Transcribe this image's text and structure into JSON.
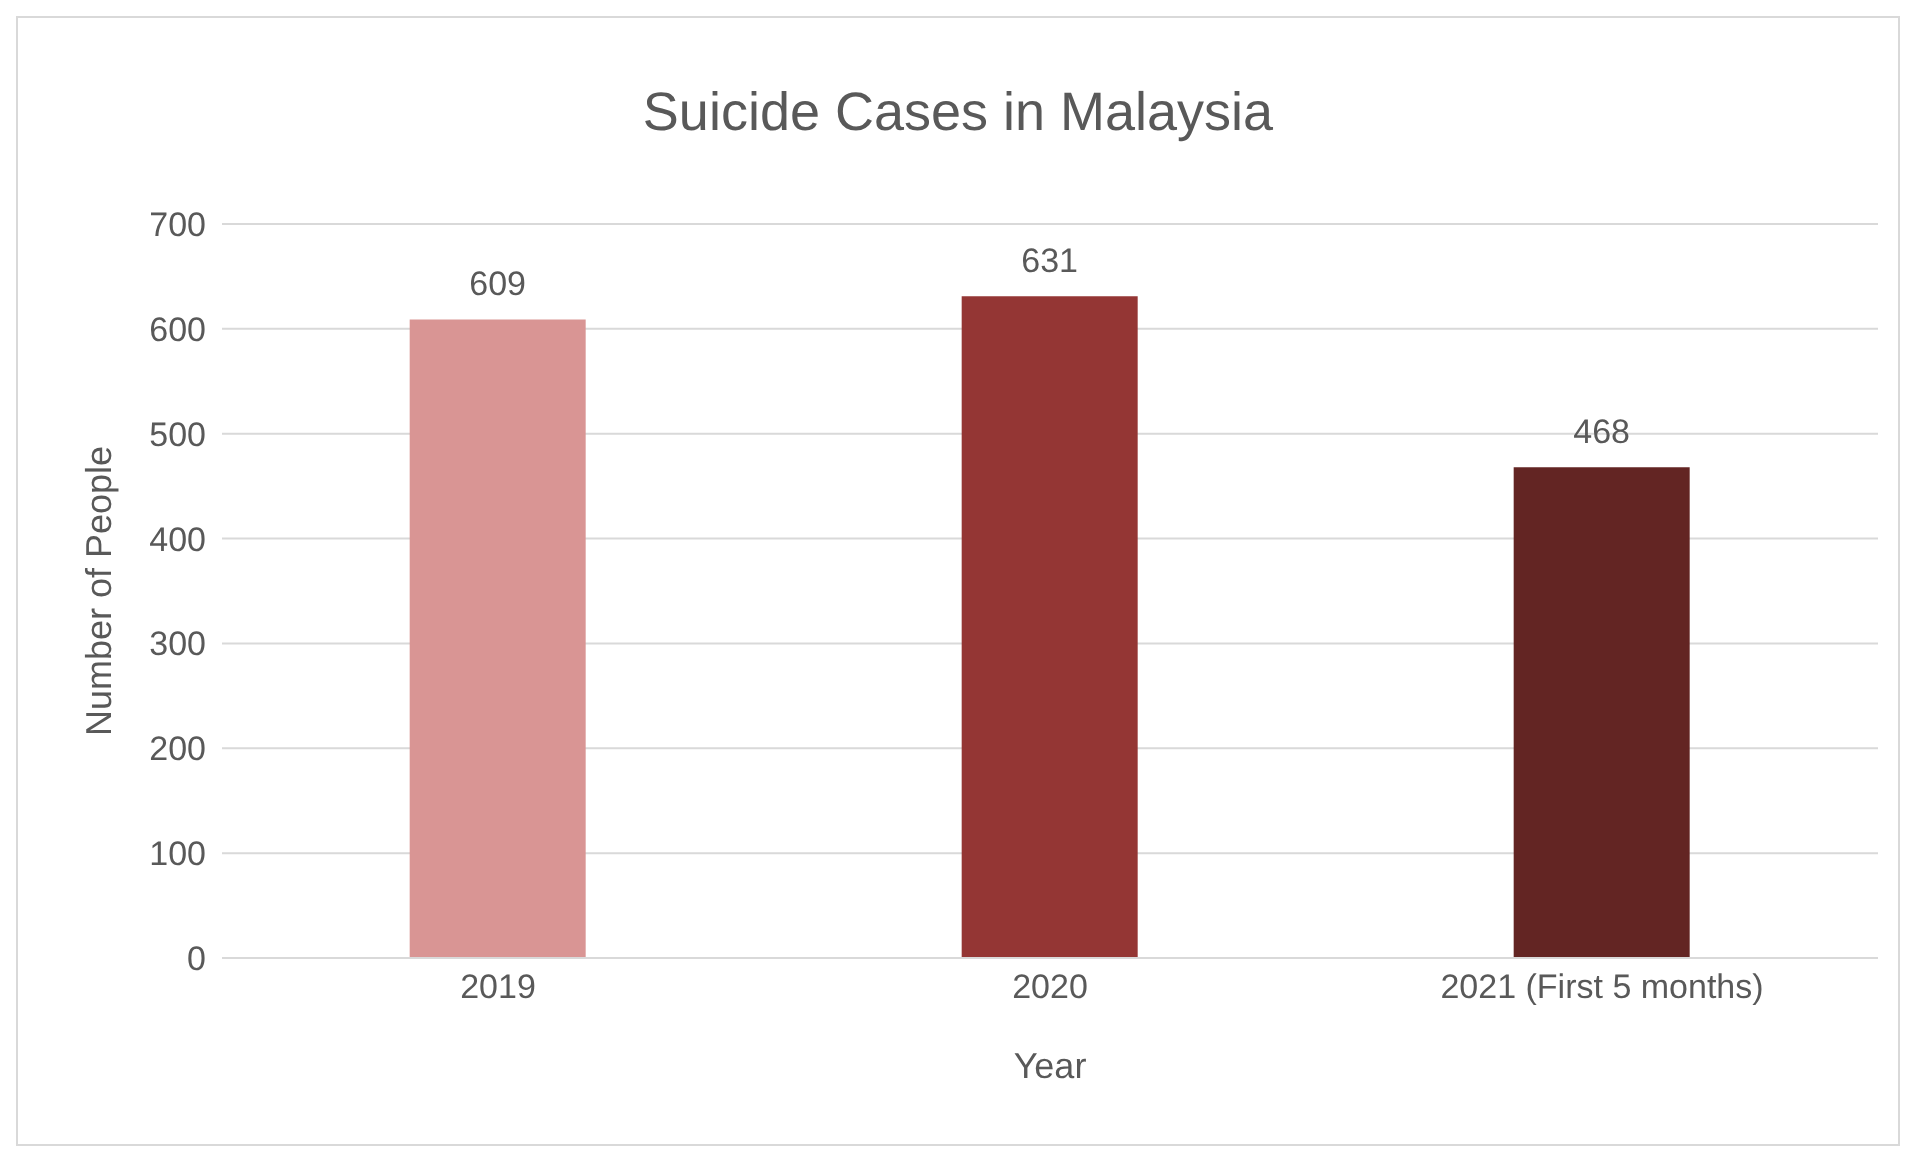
{
  "chart_data": {
    "type": "bar",
    "title": "Suicide Cases in Malaysia",
    "xlabel": "Year",
    "ylabel": "Number of People",
    "categories": [
      "2019",
      "2020",
      "2021 (First 5 months)"
    ],
    "values": [
      609,
      631,
      468
    ],
    "colors": [
      "#d99594",
      "#943634",
      "#632523"
    ],
    "ylim": [
      0,
      700
    ],
    "yticks": [
      0,
      100,
      200,
      300,
      400,
      500,
      600,
      700
    ],
    "grid": "y",
    "data_labels": true
  }
}
